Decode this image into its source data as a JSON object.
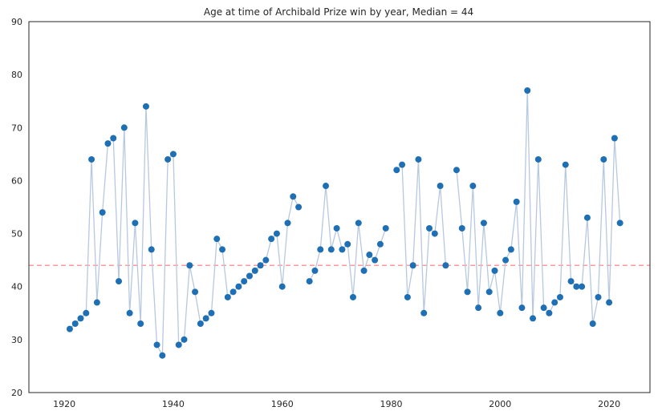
{
  "chart_data": {
    "type": "line",
    "title": "Age at time of Archibald Prize win by year, Median = 44",
    "xlabel": "",
    "ylabel": "",
    "xlim": [
      1913.5,
      2027.5
    ],
    "ylim": [
      20,
      90
    ],
    "x_ticks": [
      "1920",
      "1940",
      "1960",
      "1980",
      "2000",
      "2020"
    ],
    "y_ticks": [
      "20",
      "30",
      "40",
      "50",
      "60",
      "70",
      "80",
      "90"
    ],
    "grid": false,
    "legend": "none",
    "median_line": {
      "value": 44,
      "color": "#ff9a9a",
      "style": "dashed"
    },
    "series": [
      {
        "line_color": "#b7c9e0",
        "marker_color": "#1f6fb4",
        "points": [
          [
            1921,
            32
          ],
          [
            1922,
            33
          ],
          [
            1923,
            34
          ],
          [
            1924,
            35
          ],
          [
            1925,
            64
          ],
          [
            1926,
            37
          ],
          [
            1927,
            54
          ],
          [
            1928,
            67
          ],
          [
            1929,
            68
          ],
          [
            1930,
            41
          ],
          [
            1931,
            70
          ],
          [
            1932,
            35
          ],
          [
            1933,
            52
          ],
          [
            1934,
            33
          ],
          [
            1935,
            74
          ],
          [
            1936,
            47
          ],
          [
            1937,
            29
          ],
          [
            1938,
            27
          ],
          [
            1939,
            64
          ],
          [
            1940,
            65
          ],
          [
            1941,
            29
          ],
          [
            1942,
            30
          ],
          [
            1943,
            44
          ],
          [
            1944,
            39
          ],
          [
            1945,
            33
          ],
          [
            1946,
            34
          ],
          [
            1947,
            35
          ],
          [
            1948,
            49
          ],
          [
            1949,
            47
          ],
          [
            1950,
            38
          ],
          [
            1951,
            39
          ],
          [
            1952,
            40
          ],
          [
            1953,
            41
          ],
          [
            1954,
            42
          ],
          [
            1955,
            43
          ],
          [
            1956,
            44
          ],
          [
            1957,
            45
          ],
          [
            1958,
            49
          ],
          [
            1959,
            50
          ],
          [
            1960,
            40
          ],
          [
            1961,
            52
          ],
          [
            1962,
            57
          ],
          [
            1963,
            55
          ],
          null,
          [
            1965,
            41
          ],
          [
            1966,
            43
          ],
          [
            1967,
            47
          ],
          [
            1968,
            59
          ],
          [
            1969,
            47
          ],
          [
            1970,
            51
          ],
          [
            1971,
            47
          ],
          [
            1972,
            48
          ],
          [
            1973,
            38
          ],
          [
            1974,
            52
          ],
          [
            1975,
            43
          ],
          [
            1976,
            46
          ],
          [
            1977,
            45
          ],
          [
            1978,
            48
          ],
          [
            1979,
            51
          ],
          null,
          [
            1981,
            62
          ],
          [
            1982,
            63
          ],
          [
            1983,
            38
          ],
          [
            1984,
            44
          ],
          [
            1985,
            64
          ],
          [
            1986,
            35
          ],
          [
            1987,
            51
          ],
          [
            1988,
            50
          ],
          [
            1989,
            59
          ],
          [
            1990,
            44
          ],
          null,
          [
            1992,
            62
          ],
          [
            1993,
            51
          ],
          [
            1994,
            39
          ],
          [
            1995,
            59
          ],
          [
            1996,
            36
          ],
          [
            1997,
            52
          ],
          [
            1998,
            39
          ],
          [
            1999,
            43
          ],
          [
            2000,
            35
          ],
          [
            2001,
            45
          ],
          [
            2002,
            47
          ],
          [
            2003,
            56
          ],
          [
            2004,
            36
          ],
          [
            2005,
            77
          ],
          [
            2006,
            34
          ],
          [
            2007,
            64
          ],
          [
            2008,
            36
          ],
          [
            2009,
            35
          ],
          [
            2010,
            37
          ],
          [
            2011,
            38
          ],
          [
            2012,
            63
          ],
          [
            2013,
            41
          ],
          [
            2014,
            40
          ],
          [
            2015,
            40
          ],
          [
            2016,
            53
          ],
          [
            2017,
            33
          ],
          [
            2018,
            38
          ],
          [
            2019,
            64
          ],
          [
            2020,
            37
          ],
          [
            2021,
            68
          ],
          [
            2022,
            52
          ]
        ]
      }
    ]
  }
}
